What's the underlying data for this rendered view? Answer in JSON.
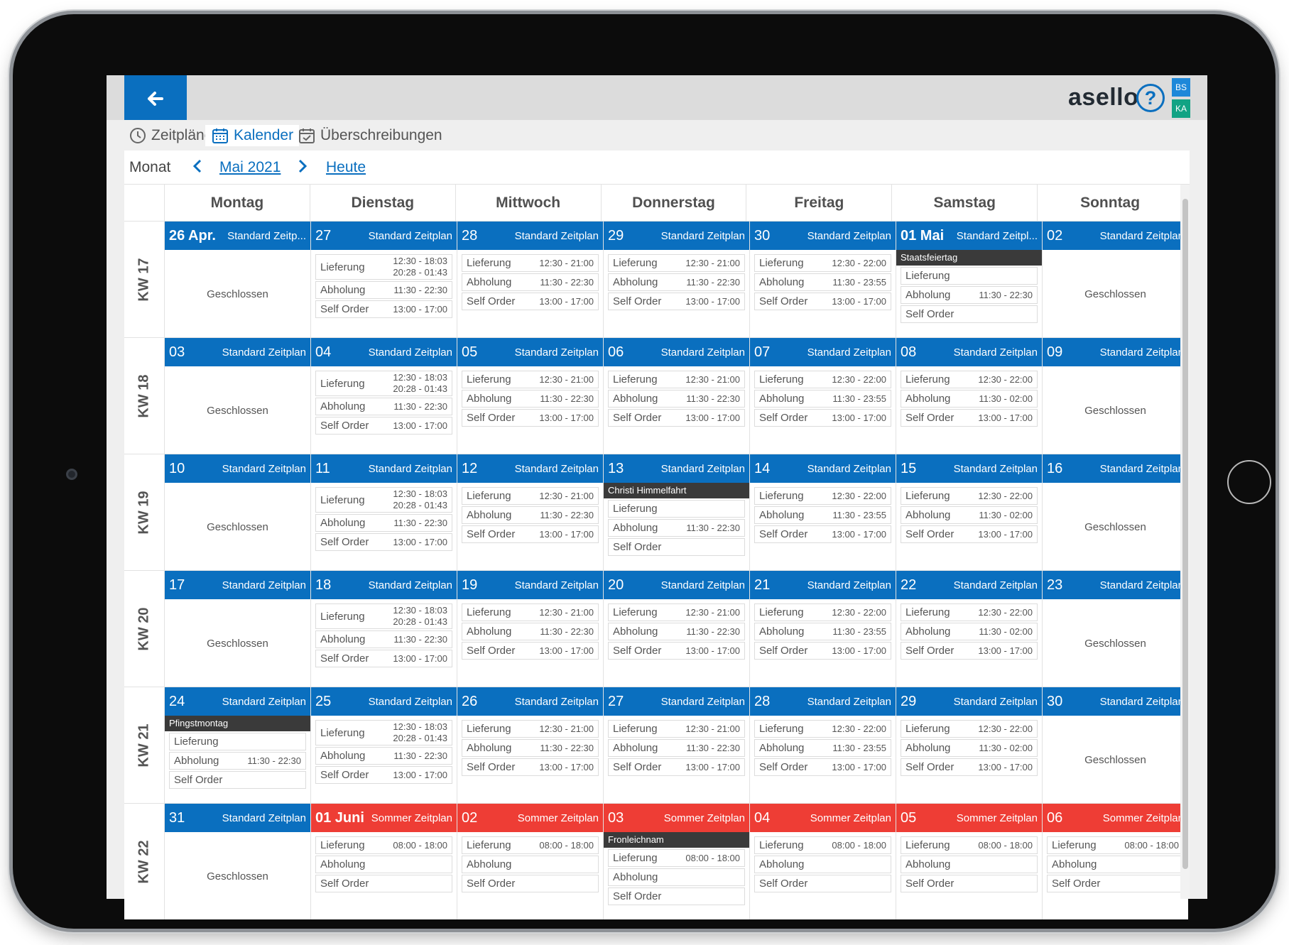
{
  "app": {
    "back_icon": "arrow-left-icon",
    "brand": "asello",
    "help_icon": "question-circle-icon",
    "badges": [
      "BS",
      "KA"
    ],
    "badge_colors": [
      "#1e88d9",
      "#12a384"
    ]
  },
  "tabs": [
    {
      "label": "Zeitpläne",
      "icon": "clock-icon",
      "active": false
    },
    {
      "label": "Kalender",
      "icon": "calendar-grid-icon",
      "active": true
    },
    {
      "label": "Überschreibungen",
      "icon": "calendar-check-icon",
      "active": false
    }
  ],
  "nav": {
    "mode_label": "Monat",
    "prev_icon": "chevron-left-icon",
    "month": "Mai 2021",
    "next_icon": "chevron-right-icon",
    "today": "Heute"
  },
  "colors": {
    "standard": "#0a6fbf",
    "sommer": "#ee3d35",
    "holiday": "#3a3a3a"
  },
  "weekdays": [
    "Montag",
    "Dienstag",
    "Mittwoch",
    "Donnerstag",
    "Freitag",
    "Samstag",
    "Sonntag"
  ],
  "weeks": [
    {
      "kw": "KW 17",
      "days": [
        {
          "date": "26 Apr.",
          "bold": true,
          "schedule": "Standard Zeitp...",
          "type": "standard",
          "closed": "Geschlossen"
        },
        {
          "date": "27",
          "schedule": "Standard Zeitplan",
          "type": "standard",
          "rows": [
            {
              "label": "Lieferung",
              "time": "12:30 - 18:03",
              "time2": "20:28 - 01:43"
            },
            {
              "label": "Abholung",
              "time": "11:30 - 22:30"
            },
            {
              "label": "Self Order",
              "time": "13:00 - 17:00"
            }
          ]
        },
        {
          "date": "28",
          "schedule": "Standard Zeitplan",
          "type": "standard",
          "rows": [
            {
              "label": "Lieferung",
              "time": "12:30 - 21:00"
            },
            {
              "label": "Abholung",
              "time": "11:30 - 22:30"
            },
            {
              "label": "Self Order",
              "time": "13:00 - 17:00"
            }
          ]
        },
        {
          "date": "29",
          "schedule": "Standard Zeitplan",
          "type": "standard",
          "rows": [
            {
              "label": "Lieferung",
              "time": "12:30 - 21:00"
            },
            {
              "label": "Abholung",
              "time": "11:30 - 22:30"
            },
            {
              "label": "Self Order",
              "time": "13:00 - 17:00"
            }
          ]
        },
        {
          "date": "30",
          "schedule": "Standard Zeitplan",
          "type": "standard",
          "rows": [
            {
              "label": "Lieferung",
              "time": "12:30 - 22:00"
            },
            {
              "label": "Abholung",
              "time": "11:30 - 23:55"
            },
            {
              "label": "Self Order",
              "time": "13:00 - 17:00"
            }
          ]
        },
        {
          "date": "01 Mai",
          "bold": true,
          "schedule": "Standard Zeitpl...",
          "type": "standard",
          "holiday": "Staatsfeiertag",
          "rows": [
            {
              "label": "Lieferung",
              "time": ""
            },
            {
              "label": "Abholung",
              "time": "11:30 - 22:30"
            },
            {
              "label": "Self Order",
              "time": ""
            }
          ]
        },
        {
          "date": "02",
          "schedule": "Standard Zeitplan",
          "type": "standard",
          "closed": "Geschlossen"
        }
      ]
    },
    {
      "kw": "KW 18",
      "days": [
        {
          "date": "03",
          "schedule": "Standard Zeitplan",
          "type": "standard",
          "closed": "Geschlossen"
        },
        {
          "date": "04",
          "schedule": "Standard Zeitplan",
          "type": "standard",
          "rows": [
            {
              "label": "Lieferung",
              "time": "12:30 - 18:03",
              "time2": "20:28 - 01:43"
            },
            {
              "label": "Abholung",
              "time": "11:30 - 22:30"
            },
            {
              "label": "Self Order",
              "time": "13:00 - 17:00"
            }
          ]
        },
        {
          "date": "05",
          "schedule": "Standard Zeitplan",
          "type": "standard",
          "rows": [
            {
              "label": "Lieferung",
              "time": "12:30 - 21:00"
            },
            {
              "label": "Abholung",
              "time": "11:30 - 22:30"
            },
            {
              "label": "Self Order",
              "time": "13:00 - 17:00"
            }
          ]
        },
        {
          "date": "06",
          "schedule": "Standard Zeitplan",
          "type": "standard",
          "rows": [
            {
              "label": "Lieferung",
              "time": "12:30 - 21:00"
            },
            {
              "label": "Abholung",
              "time": "11:30 - 22:30"
            },
            {
              "label": "Self Order",
              "time": "13:00 - 17:00"
            }
          ]
        },
        {
          "date": "07",
          "schedule": "Standard Zeitplan",
          "type": "standard",
          "rows": [
            {
              "label": "Lieferung",
              "time": "12:30 - 22:00"
            },
            {
              "label": "Abholung",
              "time": "11:30 - 23:55"
            },
            {
              "label": "Self Order",
              "time": "13:00 - 17:00"
            }
          ]
        },
        {
          "date": "08",
          "schedule": "Standard Zeitplan",
          "type": "standard",
          "rows": [
            {
              "label": "Lieferung",
              "time": "12:30 - 22:00"
            },
            {
              "label": "Abholung",
              "time": "11:30 - 02:00"
            },
            {
              "label": "Self Order",
              "time": "13:00 - 17:00"
            }
          ]
        },
        {
          "date": "09",
          "schedule": "Standard Zeitplan",
          "type": "standard",
          "closed": "Geschlossen"
        }
      ]
    },
    {
      "kw": "KW 19",
      "days": [
        {
          "date": "10",
          "schedule": "Standard Zeitplan",
          "type": "standard",
          "closed": "Geschlossen"
        },
        {
          "date": "11",
          "schedule": "Standard Zeitplan",
          "type": "standard",
          "rows": [
            {
              "label": "Lieferung",
              "time": "12:30 - 18:03",
              "time2": "20:28 - 01:43"
            },
            {
              "label": "Abholung",
              "time": "11:30 - 22:30"
            },
            {
              "label": "Self Order",
              "time": "13:00 - 17:00"
            }
          ]
        },
        {
          "date": "12",
          "schedule": "Standard Zeitplan",
          "type": "standard",
          "rows": [
            {
              "label": "Lieferung",
              "time": "12:30 - 21:00"
            },
            {
              "label": "Abholung",
              "time": "11:30 - 22:30"
            },
            {
              "label": "Self Order",
              "time": "13:00 - 17:00"
            }
          ]
        },
        {
          "date": "13",
          "schedule": "Standard Zeitplan",
          "type": "standard",
          "holiday": "Christi Himmelfahrt",
          "rows": [
            {
              "label": "Lieferung",
              "time": ""
            },
            {
              "label": "Abholung",
              "time": "11:30 - 22:30"
            },
            {
              "label": "Self Order",
              "time": ""
            }
          ]
        },
        {
          "date": "14",
          "schedule": "Standard Zeitplan",
          "type": "standard",
          "rows": [
            {
              "label": "Lieferung",
              "time": "12:30 - 22:00"
            },
            {
              "label": "Abholung",
              "time": "11:30 - 23:55"
            },
            {
              "label": "Self Order",
              "time": "13:00 - 17:00"
            }
          ]
        },
        {
          "date": "15",
          "schedule": "Standard Zeitplan",
          "type": "standard",
          "rows": [
            {
              "label": "Lieferung",
              "time": "12:30 - 22:00"
            },
            {
              "label": "Abholung",
              "time": "11:30 - 02:00"
            },
            {
              "label": "Self Order",
              "time": "13:00 - 17:00"
            }
          ]
        },
        {
          "date": "16",
          "schedule": "Standard Zeitplan",
          "type": "standard",
          "closed": "Geschlossen"
        }
      ]
    },
    {
      "kw": "KW 20",
      "days": [
        {
          "date": "17",
          "schedule": "Standard Zeitplan",
          "type": "standard",
          "closed": "Geschlossen"
        },
        {
          "date": "18",
          "schedule": "Standard Zeitplan",
          "type": "standard",
          "rows": [
            {
              "label": "Lieferung",
              "time": "12:30 - 18:03",
              "time2": "20:28 - 01:43"
            },
            {
              "label": "Abholung",
              "time": "11:30 - 22:30"
            },
            {
              "label": "Self Order",
              "time": "13:00 - 17:00"
            }
          ]
        },
        {
          "date": "19",
          "schedule": "Standard Zeitplan",
          "type": "standard",
          "rows": [
            {
              "label": "Lieferung",
              "time": "12:30 - 21:00"
            },
            {
              "label": "Abholung",
              "time": "11:30 - 22:30"
            },
            {
              "label": "Self Order",
              "time": "13:00 - 17:00"
            }
          ]
        },
        {
          "date": "20",
          "schedule": "Standard Zeitplan",
          "type": "standard",
          "rows": [
            {
              "label": "Lieferung",
              "time": "12:30 - 21:00"
            },
            {
              "label": "Abholung",
              "time": "11:30 - 22:30"
            },
            {
              "label": "Self Order",
              "time": "13:00 - 17:00"
            }
          ]
        },
        {
          "date": "21",
          "schedule": "Standard Zeitplan",
          "type": "standard",
          "rows": [
            {
              "label": "Lieferung",
              "time": "12:30 - 22:00"
            },
            {
              "label": "Abholung",
              "time": "11:30 - 23:55"
            },
            {
              "label": "Self Order",
              "time": "13:00 - 17:00"
            }
          ]
        },
        {
          "date": "22",
          "schedule": "Standard Zeitplan",
          "type": "standard",
          "rows": [
            {
              "label": "Lieferung",
              "time": "12:30 - 22:00"
            },
            {
              "label": "Abholung",
              "time": "11:30 - 02:00"
            },
            {
              "label": "Self Order",
              "time": "13:00 - 17:00"
            }
          ]
        },
        {
          "date": "23",
          "schedule": "Standard Zeitplan",
          "type": "standard",
          "closed": "Geschlossen"
        }
      ]
    },
    {
      "kw": "KW 21",
      "days": [
        {
          "date": "24",
          "schedule": "Standard Zeitplan",
          "type": "standard",
          "holiday": "Pfingstmontag",
          "rows": [
            {
              "label": "Lieferung",
              "time": ""
            },
            {
              "label": "Abholung",
              "time": "11:30 - 22:30"
            },
            {
              "label": "Self Order",
              "time": ""
            }
          ]
        },
        {
          "date": "25",
          "schedule": "Standard Zeitplan",
          "type": "standard",
          "rows": [
            {
              "label": "Lieferung",
              "time": "12:30 - 18:03",
              "time2": "20:28 - 01:43"
            },
            {
              "label": "Abholung",
              "time": "11:30 - 22:30"
            },
            {
              "label": "Self Order",
              "time": "13:00 - 17:00"
            }
          ]
        },
        {
          "date": "26",
          "schedule": "Standard Zeitplan",
          "type": "standard",
          "rows": [
            {
              "label": "Lieferung",
              "time": "12:30 - 21:00"
            },
            {
              "label": "Abholung",
              "time": "11:30 - 22:30"
            },
            {
              "label": "Self Order",
              "time": "13:00 - 17:00"
            }
          ]
        },
        {
          "date": "27",
          "schedule": "Standard Zeitplan",
          "type": "standard",
          "rows": [
            {
              "label": "Lieferung",
              "time": "12:30 - 21:00"
            },
            {
              "label": "Abholung",
              "time": "11:30 - 22:30"
            },
            {
              "label": "Self Order",
              "time": "13:00 - 17:00"
            }
          ]
        },
        {
          "date": "28",
          "schedule": "Standard Zeitplan",
          "type": "standard",
          "rows": [
            {
              "label": "Lieferung",
              "time": "12:30 - 22:00"
            },
            {
              "label": "Abholung",
              "time": "11:30 - 23:55"
            },
            {
              "label": "Self Order",
              "time": "13:00 - 17:00"
            }
          ]
        },
        {
          "date": "29",
          "schedule": "Standard Zeitplan",
          "type": "standard",
          "rows": [
            {
              "label": "Lieferung",
              "time": "12:30 - 22:00"
            },
            {
              "label": "Abholung",
              "time": "11:30 - 02:00"
            },
            {
              "label": "Self Order",
              "time": "13:00 - 17:00"
            }
          ]
        },
        {
          "date": "30",
          "schedule": "Standard Zeitplan",
          "type": "standard",
          "closed": "Geschlossen"
        }
      ]
    },
    {
      "kw": "KW 22",
      "days": [
        {
          "date": "31",
          "schedule": "Standard Zeitplan",
          "type": "standard",
          "closed": "Geschlossen"
        },
        {
          "date": "01 Juni",
          "bold": true,
          "schedule": "Sommer Zeitplan",
          "type": "sommer",
          "rows": [
            {
              "label": "Lieferung",
              "time": "08:00 - 18:00"
            },
            {
              "label": "Abholung",
              "time": ""
            },
            {
              "label": "Self Order",
              "time": ""
            }
          ]
        },
        {
          "date": "02",
          "schedule": "Sommer Zeitplan",
          "type": "sommer",
          "rows": [
            {
              "label": "Lieferung",
              "time": "08:00 - 18:00"
            },
            {
              "label": "Abholung",
              "time": ""
            },
            {
              "label": "Self Order",
              "time": ""
            }
          ]
        },
        {
          "date": "03",
          "schedule": "Sommer Zeitplan",
          "type": "sommer",
          "holiday": "Fronleichnam",
          "rows": [
            {
              "label": "Lieferung",
              "time": "08:00 - 18:00"
            },
            {
              "label": "Abholung",
              "time": ""
            },
            {
              "label": "Self Order",
              "time": ""
            }
          ]
        },
        {
          "date": "04",
          "schedule": "Sommer Zeitplan",
          "type": "sommer",
          "rows": [
            {
              "label": "Lieferung",
              "time": "08:00 - 18:00"
            },
            {
              "label": "Abholung",
              "time": ""
            },
            {
              "label": "Self Order",
              "time": ""
            }
          ]
        },
        {
          "date": "05",
          "schedule": "Sommer Zeitplan",
          "type": "sommer",
          "rows": [
            {
              "label": "Lieferung",
              "time": "08:00 - 18:00"
            },
            {
              "label": "Abholung",
              "time": ""
            },
            {
              "label": "Self Order",
              "time": ""
            }
          ]
        },
        {
          "date": "06",
          "schedule": "Sommer Zeitplan",
          "type": "sommer",
          "rows": [
            {
              "label": "Lieferung",
              "time": "08:00 - 18:00"
            },
            {
              "label": "Abholung",
              "time": ""
            },
            {
              "label": "Self Order",
              "time": ""
            }
          ]
        }
      ]
    }
  ]
}
